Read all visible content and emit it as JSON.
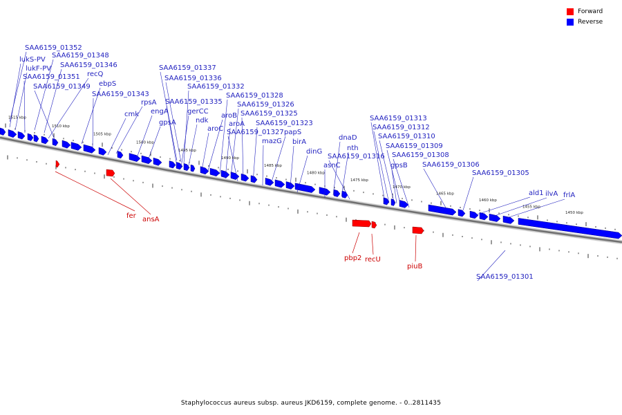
{
  "legend": {
    "items": [
      {
        "label": "Forward",
        "color": "#ff0000"
      },
      {
        "label": "Reverse",
        "color": "#0000ff"
      }
    ]
  },
  "caption": "Staphylococcus aureus subsp. aureus JKD6159, complete genome. - 0..2811435",
  "colors": {
    "forward": "#ff0000",
    "reverse": "#0000ff",
    "forward_label": "#cc0000",
    "reverse_label": "#1f1fbf",
    "backbone": "#8c8c8c"
  },
  "ticks": [
    "1515 kbp",
    "1510 kbp",
    "1505 kbp",
    "1500 kbp",
    "1495 kbp",
    "1490 kbp",
    "1485 kbp",
    "1480 kbp",
    "1475 kbp",
    "1470 kbp",
    "1465 kbp",
    "1460 kbp",
    "1455 kbp",
    "1450 kbp"
  ],
  "reverse_labels": [
    "SAA6159_01352",
    "lukS-PV",
    "SAA6159_01348",
    "lukF-PV",
    "SAA6159_01346",
    "SAA6159_01351",
    "recQ",
    "SAA6159_01349",
    "ebpS",
    "SAA6159_01343",
    "rpsA",
    "cmk",
    "engA",
    "gpsA",
    "SAA6159_01337",
    "SAA6159_01336",
    "SAA6159_01332",
    "SAA6159_01335",
    "gerCC",
    "ndk",
    "aroC",
    "aroB",
    "SAA6159_01328",
    "SAA6159_01326",
    "aroA",
    "SAA6159_01325",
    "SAA6159_01323",
    "SAA6159_01327",
    "papS",
    "mazG",
    "birA",
    "dinG",
    "dnaD",
    "nth",
    "asnC",
    "SAA6159_01316",
    "SAA6159_01313",
    "SAA6159_01312",
    "SAA6159_01310",
    "SAA6159_01309",
    "SAA6159_01308",
    "gpsB",
    "SAA6159_01306",
    "SAA6159_01305",
    "ald1",
    "ilvA",
    "frlA",
    "SAA6159_01301"
  ],
  "forward_labels": [
    "fer",
    "ansA",
    "pbp2",
    "recU",
    "piuB"
  ]
}
